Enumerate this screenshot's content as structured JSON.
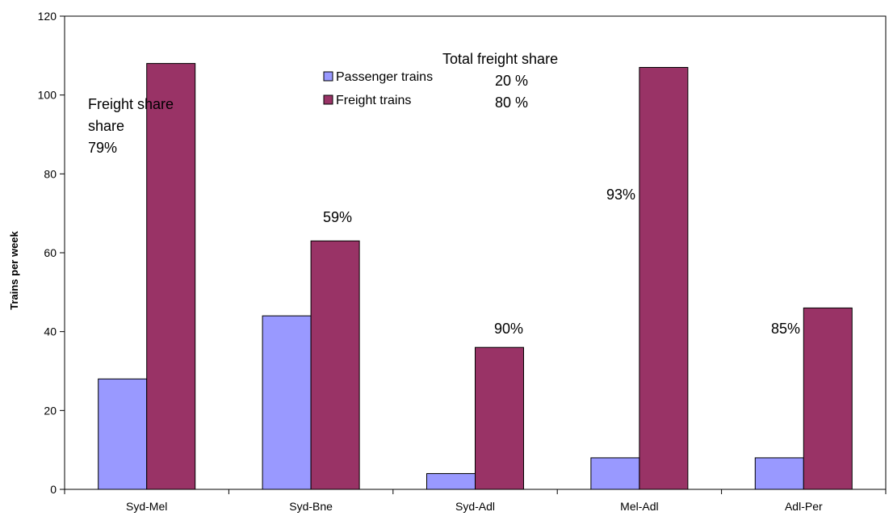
{
  "chart_data": {
    "type": "bar",
    "categories": [
      "Syd-Mel",
      "Syd-Bne",
      "Syd-Adl",
      "Mel-Adl",
      "Adl-Per"
    ],
    "series": [
      {
        "name": "Passenger trains",
        "values": [
          28,
          44,
          4,
          8,
          8
        ],
        "color": "#9999ff"
      },
      {
        "name": "Freight trains",
        "values": [
          108,
          63,
          36,
          107,
          46
        ],
        "color": "#993366"
      }
    ],
    "title": "",
    "xlabel": "",
    "ylabel": "Trains per week",
    "ylim": [
      0,
      120
    ],
    "yticks": [
      0,
      20,
      40,
      60,
      80,
      100,
      120
    ],
    "grid": false,
    "legend": "top-center",
    "freight_share_labels": [
      "Freight share",
      "79%",
      "59%",
      "90%",
      "93%",
      "85%"
    ],
    "total_share": {
      "title": "Total freight share",
      "passenger": "20 %",
      "freight": "80 %"
    }
  }
}
